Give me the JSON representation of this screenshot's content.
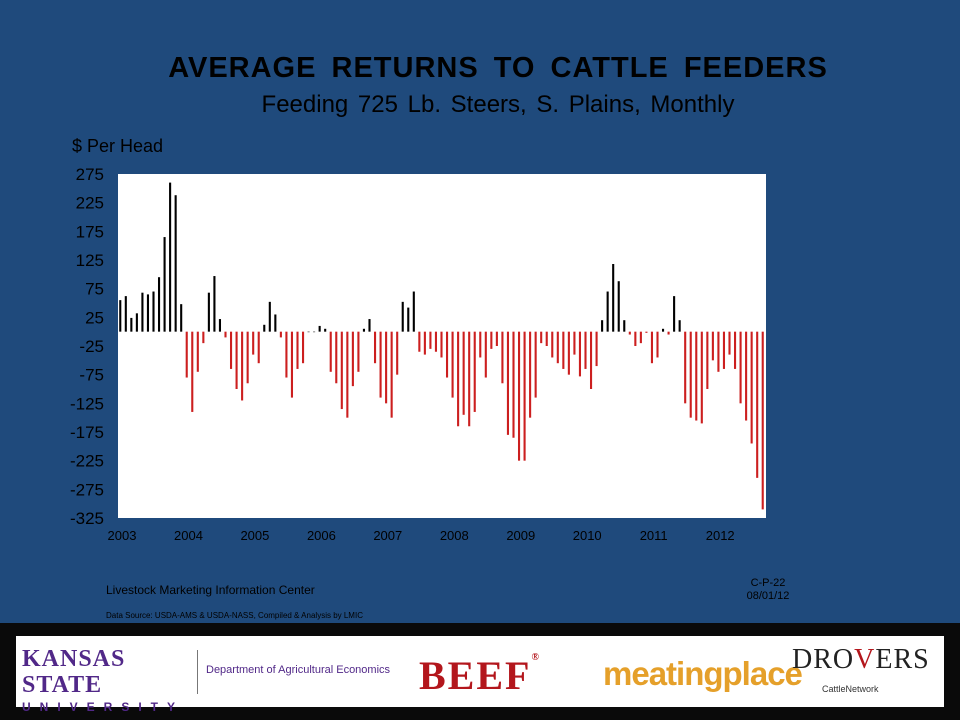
{
  "chart_data": {
    "type": "bar",
    "title": "AVERAGE RETURNS TO CATTLE FEEDERS",
    "subtitle": "Feeding 725 Lb. Steers, S. Plains, Monthly",
    "ylabel": "$ Per Head",
    "ylim": [
      -325,
      275
    ],
    "yticks": [
      275,
      225,
      175,
      125,
      75,
      25,
      -25,
      -75,
      -125,
      -175,
      -225,
      -275,
      -325
    ],
    "xticks": [
      "2003",
      "2004",
      "2005",
      "2006",
      "2007",
      "2008",
      "2009",
      "2010",
      "2011",
      "2012"
    ],
    "start": "2003-01",
    "frequency": "monthly",
    "grid": false,
    "colors": {
      "positive": "#000000",
      "negative": "#cc1f1f"
    },
    "values": [
      55,
      62,
      24,
      32,
      68,
      65,
      70,
      95,
      165,
      260,
      238,
      48,
      -80,
      -140,
      -70,
      -20,
      68,
      97,
      22,
      -10,
      -65,
      -100,
      -120,
      -90,
      -40,
      -55,
      12,
      52,
      30,
      -10,
      -80,
      -115,
      -65,
      -55,
      0,
      0,
      10,
      5,
      -70,
      -90,
      -135,
      -150,
      -95,
      -70,
      5,
      22,
      -55,
      -115,
      -125,
      -150,
      -75,
      52,
      42,
      70,
      -35,
      -40,
      -30,
      -35,
      -45,
      -80,
      -115,
      -165,
      -145,
      -165,
      -140,
      -45,
      -80,
      -30,
      -25,
      -90,
      -180,
      -185,
      -225,
      -225,
      -150,
      -115,
      -20,
      -25,
      -45,
      -55,
      -65,
      -75,
      -40,
      -78,
      -65,
      -100,
      -60,
      20,
      70,
      118,
      88,
      20,
      -5,
      -25,
      -20,
      -2,
      -55,
      -45,
      5,
      -5,
      62,
      20,
      -125,
      -150,
      -155,
      -160,
      -100,
      -50,
      -70,
      -65,
      -40,
      -65,
      -125,
      -155,
      -195,
      -255,
      -310
    ]
  },
  "source": {
    "org": "Livestock Marketing Information Center",
    "data_source": "Data Source:  USDA-AMS & USDA-NASS, Compiled & Analysis by LMIC",
    "code": "C-P-22",
    "date": "08/01/12"
  },
  "logos": {
    "ksu_name": "KANSAS STATE",
    "ksu_univ": "UNIVERSITY",
    "dept": "Department of Agricultural Economics",
    "beef": "BEEF",
    "beef_reg": "®",
    "meatingplace": "meatingplace",
    "drovers_a": "DRO",
    "drovers_v": "V",
    "drovers_b": "ERS",
    "drovers_tag": "CattleNetwork",
    "icons": [
      "beef-logo",
      "meatingplace-logo",
      "drovers-logo",
      "ksu-logo"
    ]
  }
}
